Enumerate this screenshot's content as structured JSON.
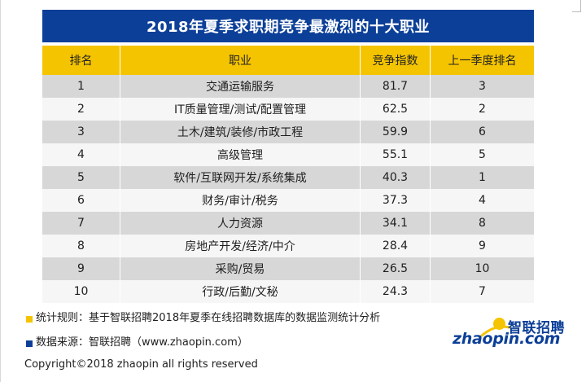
{
  "title": "2018年夏季求职期竞争最激烈的十大职业",
  "table": {
    "headers": [
      "排名",
      "职业",
      "竞争指数",
      "上一季度排名"
    ],
    "rows": [
      [
        "1",
        "交通运输服务",
        "81.7",
        "3"
      ],
      [
        "2",
        "IT质量管理/测试/配置管理",
        "62.5",
        "2"
      ],
      [
        "3",
        "土木/建筑/装修/市政工程",
        "59.9",
        "6"
      ],
      [
        "4",
        "高级管理",
        "55.1",
        "5"
      ],
      [
        "5",
        "软件/互联网开发/系统集成",
        "40.3",
        "1"
      ],
      [
        "6",
        "财务/审计/税务",
        "37.3",
        "4"
      ],
      [
        "7",
        "人力资源",
        "34.1",
        "8"
      ],
      [
        "8",
        "房地产开发/经济/中介",
        "28.4",
        "9"
      ],
      [
        "9",
        "采购/贸易",
        "26.5",
        "10"
      ],
      [
        "10",
        "行政/后勤/文秘",
        "24.3",
        "7"
      ]
    ]
  },
  "notes": {
    "rule": "统计规则：基于智联招聘2018年夏季在线招聘数据库的数据监测统计分析",
    "source": "数据来源：智联招聘（www.zhaopin.com）"
  },
  "logo": {
    "cn": "智联招聘",
    "en": "zhaopin.com"
  },
  "copyright": "Copyright©2018 zhaopin all rights reserved",
  "colors": {
    "title_bg": "#0c3f98",
    "header_bg": "#f5c400",
    "row_odd": "#d7d7d7",
    "row_even": "#f6f6f6"
  }
}
